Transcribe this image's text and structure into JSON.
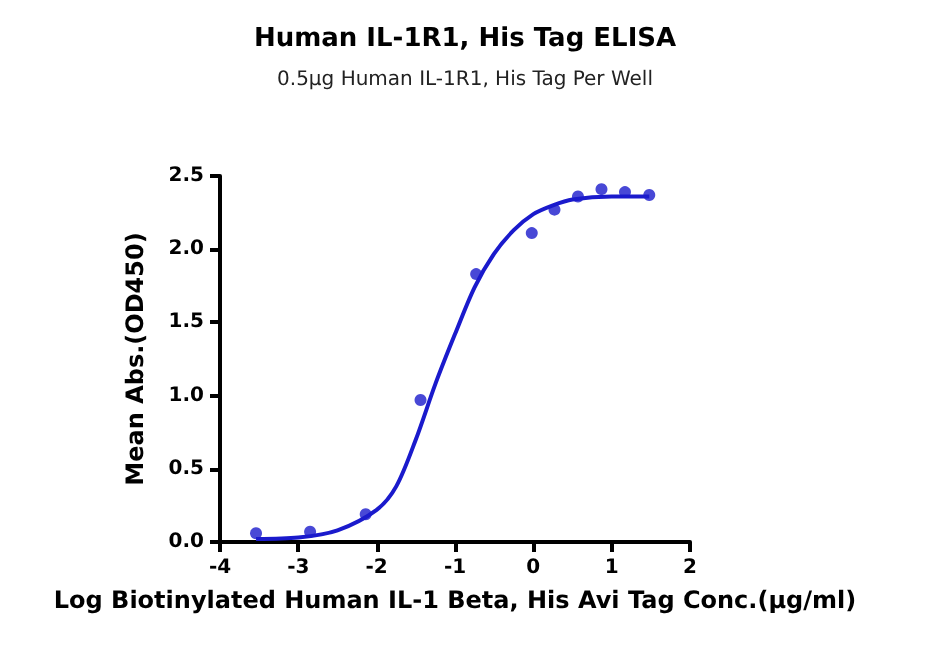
{
  "chart_data": {
    "type": "scatter",
    "title": "Human IL-1R1, His Tag ELISA",
    "subtitle": "0.5μg Human IL-1R1, His Tag Per Well",
    "xlabel": "Log Biotinylated Human IL-1 Beta, His Avi Tag Conc.(μg/ml)",
    "ylabel": "Mean Abs.(OD450)",
    "series": [
      {
        "color": "#1a1acc",
        "marker": "circle",
        "x": [
          -3.54,
          -2.85,
          -2.14,
          -1.44,
          -0.73,
          -0.02,
          0.27,
          0.57,
          0.87,
          1.17,
          1.48
        ],
        "values": [
          0.06,
          0.07,
          0.19,
          0.97,
          1.83,
          2.11,
          2.27,
          2.36,
          2.41,
          2.39,
          2.37
        ]
      },
      {
        "type": "line",
        "color": "#1a1acc",
        "marker": "none",
        "x": [
          -3.54,
          -3,
          -2.5,
          -2,
          -1.75,
          -1.5,
          -1.25,
          -1,
          -0.75,
          -0.5,
          -0.25,
          0,
          0.25,
          0.5,
          1,
          1.48
        ],
        "values": [
          0.02,
          0.03,
          0.08,
          0.22,
          0.38,
          0.7,
          1.08,
          1.42,
          1.74,
          1.97,
          2.13,
          2.24,
          2.3,
          2.34,
          2.36,
          2.36
        ]
      }
    ],
    "xlim": [
      -4,
      2
    ],
    "xticks": [
      -4,
      -3,
      -2,
      -1,
      0,
      1,
      2
    ],
    "ylim": [
      0,
      2.5
    ],
    "yticks": [
      {
        "value": 0,
        "label": "0.0"
      },
      0.5,
      {
        "value": 1,
        "label": "1.0"
      },
      1.5,
      {
        "value": 2,
        "label": "2.0"
      },
      2.5
    ],
    "grid": false
  }
}
